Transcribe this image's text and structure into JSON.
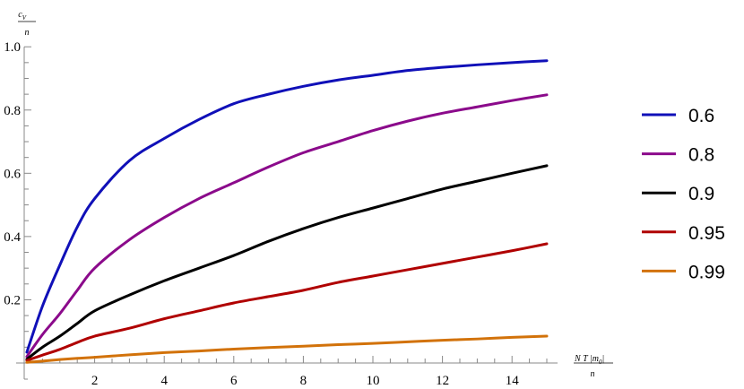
{
  "chart_data": {
    "type": "line",
    "title": "",
    "xlabel": "N T |m0| / n",
    "ylabel": "c_V / n",
    "xlim": [
      0,
      15
    ],
    "ylim": [
      0,
      1.0
    ],
    "grid": false,
    "legend_position": "right",
    "x_ticks": [
      2,
      4,
      6,
      8,
      10,
      12,
      14
    ],
    "y_ticks": [
      0.2,
      0.4,
      0.6,
      0.8,
      1.0
    ],
    "x_tick_labels": [
      "2",
      "4",
      "6",
      "8",
      "10",
      "12",
      "14"
    ],
    "y_tick_labels": [
      "0.2",
      "0.4",
      "0.6",
      "0.8",
      "1.0"
    ],
    "x": [
      0.05,
      0.5,
      1,
      1.5,
      2,
      3,
      4,
      5,
      6,
      7,
      8,
      9,
      10,
      11,
      12,
      13,
      14,
      15
    ],
    "series": [
      {
        "name": "0.6",
        "color": "#1010b8",
        "values": [
          0.034,
          0.18,
          0.31,
          0.43,
          0.52,
          0.64,
          0.71,
          0.77,
          0.82,
          0.85,
          0.875,
          0.895,
          0.91,
          0.925,
          0.935,
          0.943,
          0.95,
          0.956
        ]
      },
      {
        "name": "0.8",
        "color": "#8b0a8b",
        "values": [
          0.02,
          0.09,
          0.156,
          0.23,
          0.3,
          0.39,
          0.46,
          0.52,
          0.57,
          0.62,
          0.665,
          0.7,
          0.735,
          0.765,
          0.79,
          0.81,
          0.83,
          0.848
        ]
      },
      {
        "name": "0.9",
        "color": "#000000",
        "values": [
          0.012,
          0.05,
          0.085,
          0.125,
          0.165,
          0.215,
          0.26,
          0.3,
          0.34,
          0.385,
          0.425,
          0.46,
          0.49,
          0.52,
          0.55,
          0.575,
          0.6,
          0.624
        ]
      },
      {
        "name": "0.95",
        "color": "#b00000",
        "values": [
          0.008,
          0.025,
          0.043,
          0.065,
          0.085,
          0.11,
          0.14,
          0.165,
          0.19,
          0.21,
          0.23,
          0.255,
          0.275,
          0.295,
          0.315,
          0.335,
          0.355,
          0.377
        ]
      },
      {
        "name": "0.99",
        "color": "#d2720a",
        "values": [
          0.002,
          0.006,
          0.011,
          0.015,
          0.018,
          0.026,
          0.033,
          0.038,
          0.044,
          0.049,
          0.053,
          0.058,
          0.062,
          0.067,
          0.072,
          0.076,
          0.081,
          0.085
        ]
      }
    ]
  },
  "axes": {
    "y_label_top": "c",
    "y_label_sub": "V",
    "y_label_bottom": "n",
    "x_label_top_a": "N T |m",
    "x_label_sub": "0",
    "x_label_top_b": "|",
    "x_label_bottom": "n"
  }
}
